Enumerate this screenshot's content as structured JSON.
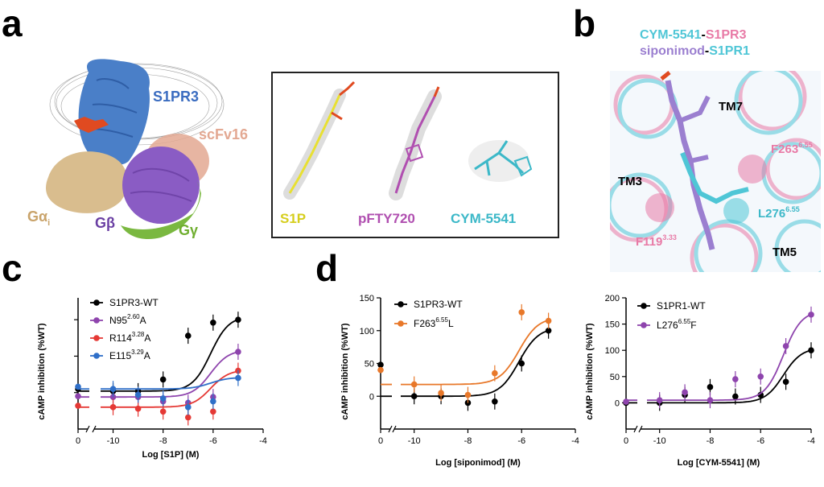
{
  "panels": {
    "a": "a",
    "b": "b",
    "c": "c",
    "d": "d"
  },
  "panel_a": {
    "labels": {
      "s1pr3": "S1PR3",
      "scfv16": "scFv16",
      "gai_main": "Gα",
      "gai_sub": "i",
      "gb": "Gβ",
      "gg": "Gγ"
    },
    "ligands": [
      "S1P",
      "pFTY720",
      "CYM-5541"
    ],
    "colors": {
      "s1pr3": "#4a7fc8",
      "gai": "#d9bd8e",
      "gb": "#8a5cc4",
      "gg": "#7ab840",
      "scfv": "#e3a892",
      "ligand": "#e04a20",
      "s1p": "#e8e032",
      "pfty720": "#b04fb0",
      "cym": "#3cb8c8"
    }
  },
  "panel_b": {
    "title_line1": {
      "a": "CYM-5541",
      "sep": "-",
      "b": "S1PR3"
    },
    "title_line2": {
      "a": "siponimod",
      "sep": "-",
      "b": "S1PR1"
    },
    "labels": {
      "tm7": "TM7",
      "tm3": "TM3",
      "tm5": "TM5",
      "f263": "F263",
      "f263_sup": "6.55",
      "l276": "L276",
      "l276_sup": "6.55",
      "f119": "F119",
      "f119_sup": "3.33"
    },
    "colors": {
      "cyan": "#4fc6d6",
      "pink": "#e87aa6",
      "purple": "#9b7fd0"
    }
  },
  "chart_data": [
    {
      "type": "scatter",
      "panel": "c",
      "xlabel": "Log [S1P] (M)",
      "ylabel": "cAMP inhibition (%WT)",
      "xticks": [
        "0",
        "-10",
        "-8",
        "-6",
        "-4"
      ],
      "yticks": [],
      "xlim": [
        -11,
        -4
      ],
      "ylim": [
        -50,
        130
      ],
      "series": [
        {
          "name": "S1PR3-WT",
          "color": "#000000",
          "x": [
            -11,
            -10,
            -9,
            -8,
            -7,
            -6,
            -5
          ],
          "y": [
            5,
            2,
            2,
            18,
            78,
            96,
            100
          ]
        },
        {
          "name": "N95",
          "sup": "2.60",
          "suffix": "A",
          "color": "#8e44ad",
          "x": [
            -11,
            -10,
            -9,
            -8,
            -7,
            -6,
            -5
          ],
          "y": [
            -5,
            -6,
            -6,
            -12,
            -14,
            -6,
            56
          ]
        },
        {
          "name": "R114",
          "sup": "3.28",
          "suffix": "A",
          "color": "#e53935",
          "x": [
            -11,
            -10,
            -9,
            -8,
            -7,
            -6,
            -5
          ],
          "y": [
            -18,
            -20,
            -22,
            -26,
            -34,
            -26,
            30
          ]
        },
        {
          "name": "E115",
          "sup": "3.29",
          "suffix": "A",
          "color": "#2f6fc8",
          "x": [
            -11,
            -10,
            -9,
            -8,
            -7,
            -6,
            -5
          ],
          "y": [
            8,
            5,
            -3,
            -8,
            -20,
            -12,
            20
          ]
        }
      ]
    },
    {
      "type": "scatter",
      "panel": "d-left",
      "xlabel": "Log [siponimod] (M)",
      "ylabel": "cAMP inhibition (%WT)",
      "xticks": [
        "0",
        "-10",
        "-8",
        "-6",
        "-4"
      ],
      "yticks": [
        "0",
        "50",
        "100",
        "150"
      ],
      "xlim": [
        -11,
        -4
      ],
      "ylim": [
        -50,
        150
      ],
      "series": [
        {
          "name": "S1PR3-WT",
          "color": "#000000",
          "x": [
            -11,
            -10,
            -9,
            -8,
            -7,
            -6,
            -5
          ],
          "y": [
            48,
            0,
            0,
            -10,
            -8,
            50,
            100
          ]
        },
        {
          "name": "F263",
          "sup": "6.55",
          "suffix": "L",
          "color": "#e8782a",
          "x": [
            -11,
            -10,
            -9,
            -8,
            -7,
            -6,
            -5
          ],
          "y": [
            40,
            18,
            5,
            2,
            35,
            128,
            115
          ]
        }
      ]
    },
    {
      "type": "scatter",
      "panel": "d-right",
      "xlabel": "Log [CYM-5541] (M)",
      "ylabel": "cAMP inhibition (%WT)",
      "xticks": [
        "0",
        "-10",
        "-8",
        "-6",
        "-4"
      ],
      "yticks": [
        "0",
        "50",
        "100",
        "150",
        "200"
      ],
      "xlim": [
        -11,
        -4
      ],
      "ylim": [
        -50,
        200
      ],
      "series": [
        {
          "name": "S1PR1-WT",
          "color": "#000000",
          "x": [
            -11,
            -10,
            -9,
            -8,
            -7,
            -6,
            -5,
            -4
          ],
          "y": [
            0,
            0,
            15,
            30,
            12,
            15,
            40,
            100
          ]
        },
        {
          "name": "L276",
          "sup": "6.55",
          "suffix": "F",
          "color": "#8e44ad",
          "x": [
            -11,
            -10,
            -9,
            -8,
            -7,
            -6,
            -5,
            -4
          ],
          "y": [
            2,
            5,
            20,
            5,
            45,
            50,
            108,
            168
          ]
        }
      ]
    }
  ]
}
